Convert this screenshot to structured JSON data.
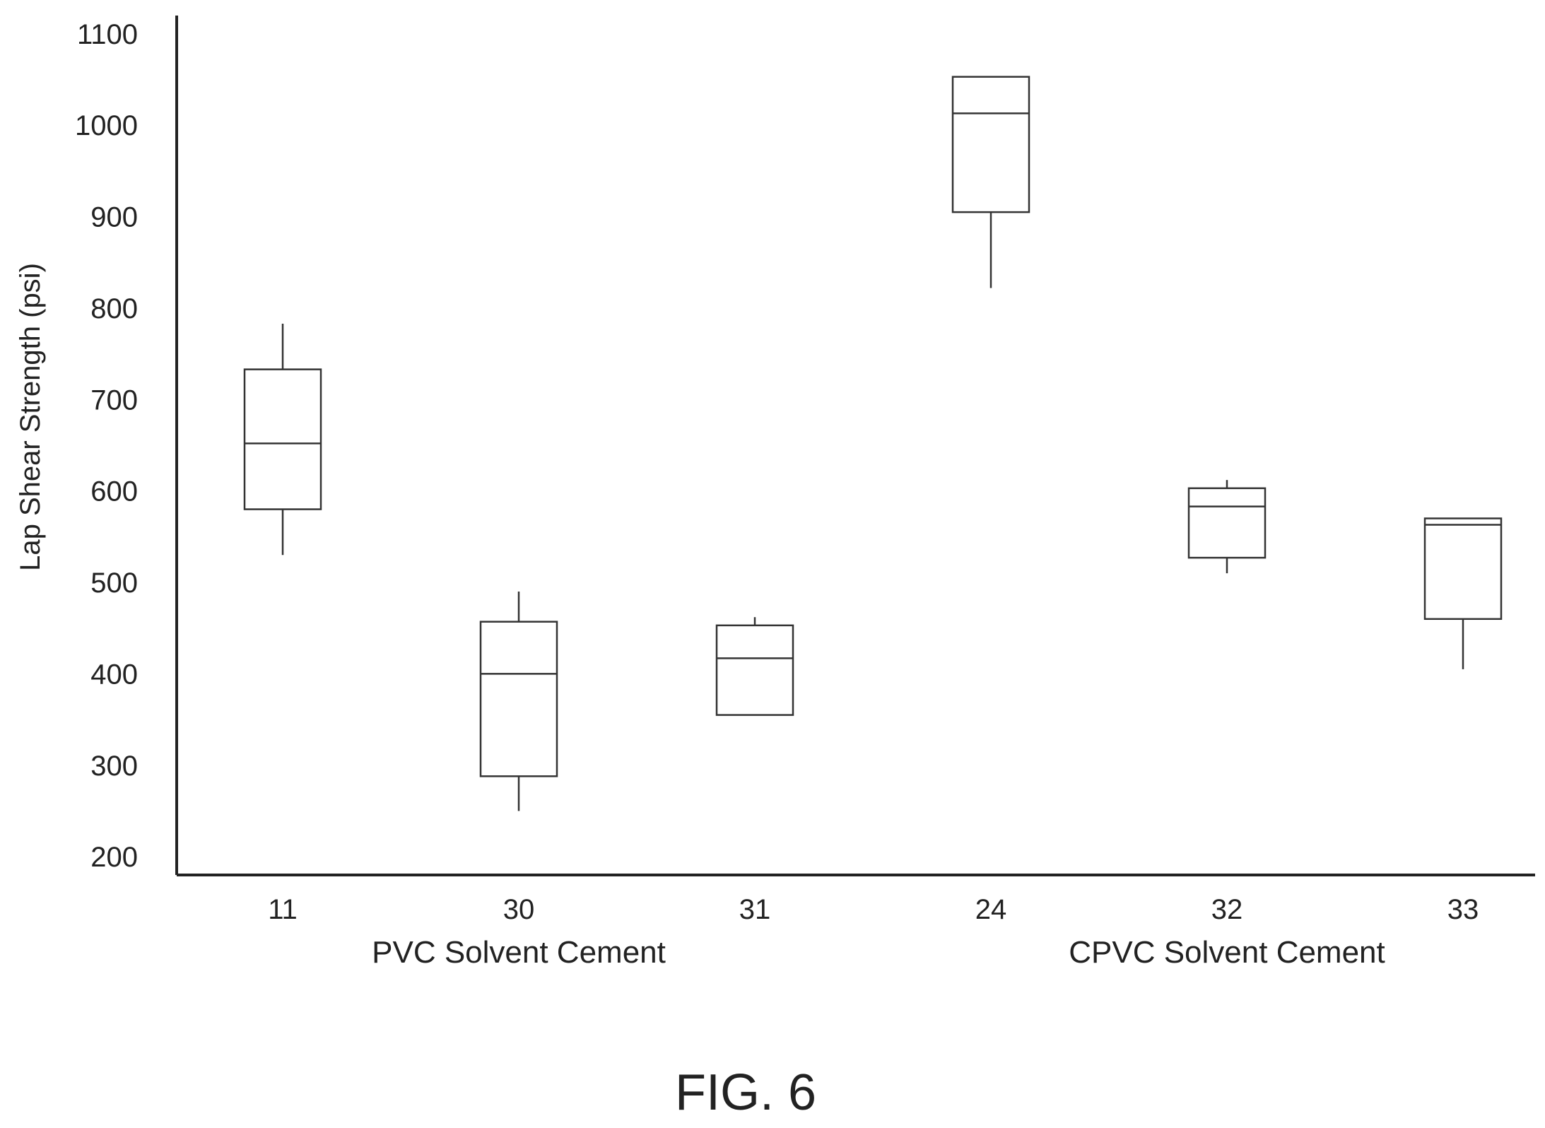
{
  "chart_data": {
    "type": "box",
    "ylabel": "Lap Shear Strength (psi)",
    "ylim": [
      180,
      1120
    ],
    "yticks": [
      200,
      300,
      400,
      500,
      600,
      700,
      800,
      900,
      1000,
      1100
    ],
    "categories": [
      "11",
      "30",
      "31",
      "24",
      "32",
      "33"
    ],
    "groups": [
      {
        "label": "PVC Solvent Cement",
        "categories": [
          "11",
          "30",
          "31"
        ]
      },
      {
        "label": "CPVC Solvent Cement",
        "categories": [
          "24",
          "32",
          "33"
        ]
      }
    ],
    "boxes": [
      {
        "category": "11",
        "min": 530,
        "q1": 580,
        "median": 652,
        "q3": 733,
        "max": 783
      },
      {
        "category": "30",
        "min": 250,
        "q1": 288,
        "median": 400,
        "q3": 457,
        "max": 490
      },
      {
        "category": "31",
        "min": 355,
        "q1": 355,
        "median": 417,
        "q3": 453,
        "max": 462
      },
      {
        "category": "24",
        "min": 822,
        "q1": 905,
        "median": 1013,
        "q3": 1053,
        "max": 1053
      },
      {
        "category": "32",
        "min": 510,
        "q1": 527,
        "median": 583,
        "q3": 603,
        "max": 612
      },
      {
        "category": "33",
        "min": 405,
        "q1": 460,
        "median": 563,
        "q3": 570,
        "max": 570
      }
    ]
  },
  "figure": {
    "caption": "FIG. 6"
  }
}
